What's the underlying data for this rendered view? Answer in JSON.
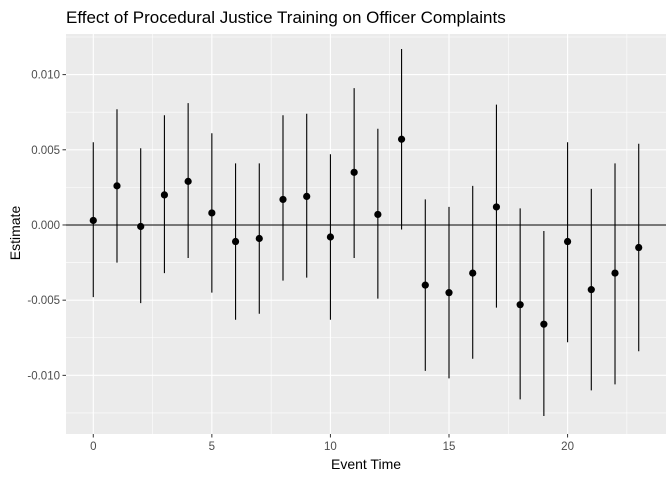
{
  "chart_data": {
    "type": "scatter",
    "title": "Effect of Procedural Justice Training on Officer Complaints",
    "xlabel": "Event Time",
    "ylabel": "Estimate",
    "xlim": [
      -1.15,
      24.15
    ],
    "ylim": [
      -0.0139,
      0.0127
    ],
    "x_ticks": [
      0,
      5,
      10,
      15,
      20
    ],
    "x_tick_labels": [
      "0",
      "5",
      "10",
      "15",
      "20"
    ],
    "y_ticks": [
      -0.01,
      -0.005,
      0.0,
      0.005,
      0.01
    ],
    "y_tick_labels": [
      "-0.010",
      "-0.005",
      "0.000",
      "0.005",
      "0.010"
    ],
    "hline": 0,
    "grid": true,
    "background": "#ebebeb",
    "point_color": "#000000",
    "series": [
      {
        "x": [
          0,
          1,
          2,
          3,
          4,
          5,
          6,
          7,
          8,
          9,
          10,
          11,
          12,
          13,
          14,
          15,
          16,
          17,
          18,
          19,
          20,
          21,
          22,
          23
        ],
        "estimate": [
          0.0003,
          0.0026,
          -0.0001,
          0.002,
          0.0029,
          0.0008,
          -0.0011,
          -0.0009,
          0.0017,
          0.0019,
          -0.0008,
          0.0035,
          0.0007,
          0.0057,
          -0.004,
          -0.0045,
          -0.0032,
          0.0012,
          -0.0053,
          -0.0066,
          -0.0011,
          -0.0043,
          -0.0032,
          -0.0015
        ],
        "lower": [
          -0.0048,
          -0.0025,
          -0.0052,
          -0.0032,
          -0.0022,
          -0.0045,
          -0.0063,
          -0.0059,
          -0.0037,
          -0.0035,
          -0.0063,
          -0.0022,
          -0.0049,
          -0.0003,
          -0.0097,
          -0.0102,
          -0.0089,
          -0.0055,
          -0.0116,
          -0.0127,
          -0.0078,
          -0.011,
          -0.0106,
          -0.0084
        ],
        "upper": [
          0.0055,
          0.0077,
          0.0051,
          0.0073,
          0.0081,
          0.0061,
          0.0041,
          0.0041,
          0.0073,
          0.0074,
          0.0047,
          0.0091,
          0.0064,
          0.0117,
          0.0017,
          0.0012,
          0.0026,
          0.008,
          0.0011,
          -0.0004,
          0.0055,
          0.0024,
          0.0041,
          0.0054
        ]
      }
    ]
  }
}
